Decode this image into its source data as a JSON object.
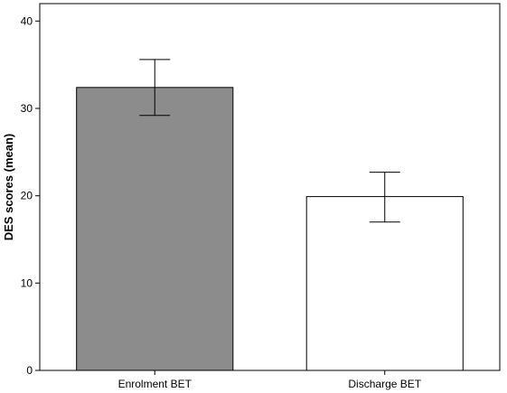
{
  "chart_data": {
    "type": "bar",
    "title": "",
    "xlabel": "",
    "ylabel": "DES scores (mean)",
    "categories": [
      "Enrolment BET",
      "Discharge BET"
    ],
    "values": [
      32.4,
      19.9
    ],
    "error_low": [
      29.2,
      17.0
    ],
    "error_high": [
      35.6,
      22.7
    ],
    "bar_colors": [
      "#8c8c8c",
      "#ffffff"
    ],
    "ylim": [
      0,
      42
    ],
    "yticks": [
      "0",
      "10",
      "20",
      "30",
      "40"
    ],
    "grid": false,
    "legend": "none"
  }
}
